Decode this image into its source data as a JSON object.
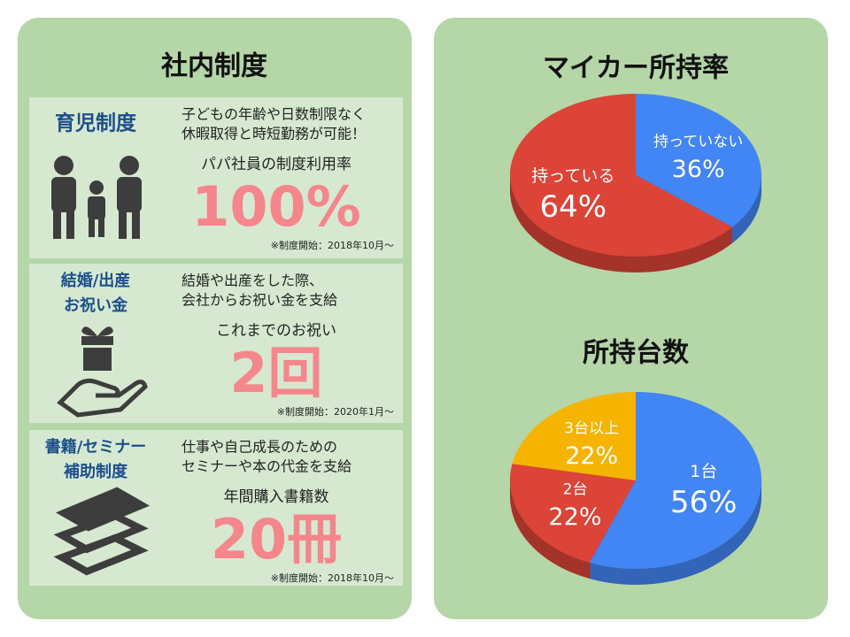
{
  "left": {
    "title": "社内制度",
    "items": [
      {
        "title": [
          "育児制度"
        ],
        "desc": [
          "子どもの年齢や日数制限なく",
          "休暇取得と時短勤務が可能！"
        ],
        "stat_label": "パパ社員の制度利用率",
        "stat": "100%",
        "note": "※制度開始：2018年10月〜"
      },
      {
        "title": [
          "結婚/出産",
          "お祝い金"
        ],
        "desc": [
          "結婚や出産をした際、",
          "会社からお祝い金を支給"
        ],
        "stat_label": "これまでのお祝い",
        "stat": "2回",
        "note": "※制度開始：2020年1月〜"
      },
      {
        "title": [
          "書籍/セミナー",
          "補助制度"
        ],
        "desc": [
          "仕事や自己成長のための",
          "セミナーや本の代金を支給"
        ],
        "stat_label": "年間購入書籍数",
        "stat": "20冊",
        "note": "※制度開始：2018年10月〜"
      }
    ]
  },
  "chart_data": [
    {
      "type": "pie",
      "title": "マイカー所持率",
      "categories": [
        "持っていない",
        "持っている"
      ],
      "values": [
        36,
        64
      ],
      "value_labels": [
        "36%",
        "64%"
      ],
      "colors": [
        "#4285f4",
        "#db4437"
      ]
    },
    {
      "type": "pie",
      "title": "所持台数",
      "categories": [
        "1台",
        "2台",
        "3台以上"
      ],
      "values": [
        56,
        22,
        22
      ],
      "value_labels": [
        "56%",
        "22%",
        "22%"
      ],
      "colors": [
        "#4285f4",
        "#db4437",
        "#f4b400"
      ]
    }
  ]
}
